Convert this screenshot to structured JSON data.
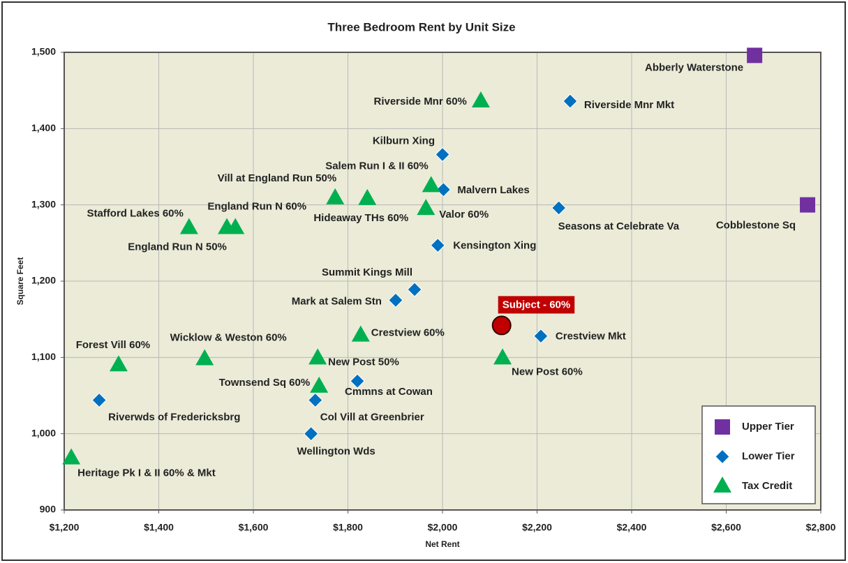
{
  "chart_data": {
    "type": "scatter",
    "title": "Three Bedroom Rent by Unit Size",
    "xlabel": "Net Rent",
    "ylabel": "Square Feet",
    "xlim": [
      1200,
      2800
    ],
    "ylim": [
      900,
      1500
    ],
    "xticks": [
      {
        "value": 1200,
        "label": "$1,200"
      },
      {
        "value": 1400,
        "label": "$1,400"
      },
      {
        "value": 1600,
        "label": "$1,600"
      },
      {
        "value": 1800,
        "label": "$1,800"
      },
      {
        "value": 2000,
        "label": "$2,000"
      },
      {
        "value": 2200,
        "label": "$2,200"
      },
      {
        "value": 2400,
        "label": "$2,400"
      },
      {
        "value": 2600,
        "label": "$2,600"
      },
      {
        "value": 2800,
        "label": "$2,800"
      }
    ],
    "yticks": [
      900,
      {
        "value": 1000,
        "label": "1,000"
      },
      {
        "value": 1100,
        "label": "1,100"
      },
      {
        "value": 1200,
        "label": "1,200"
      },
      {
        "value": 1300,
        "label": "1,300"
      },
      {
        "value": 1400,
        "label": "1,400"
      },
      {
        "value": 1500,
        "label": "1,500"
      }
    ],
    "grid": true,
    "legend": "lower right",
    "series": [
      {
        "name": "Upper Tier",
        "color": "#7030a0",
        "marker": "square",
        "x": [
          2660,
          2772
        ],
        "y": [
          1496,
          1300
        ],
        "labels": [
          "Abberly Waterstone",
          "Cobblestone Sq"
        ]
      },
      {
        "name": "Lower Tier",
        "color": "#0070c0",
        "marker": "diamond",
        "x": [
          2270,
          2000,
          2002,
          2246,
          1990,
          1941,
          1901,
          2208,
          1820,
          1731,
          1722,
          1274
        ],
        "y": [
          1436,
          1366,
          1320,
          1296,
          1247,
          1189,
          1175,
          1128,
          1069,
          1044,
          1000,
          1044
        ],
        "labels": [
          "Riverside Mnr Mkt",
          "Kilburn Xing",
          "Malvern Lakes",
          "Seasons at Celebrate Va",
          "Kensington Xing",
          "Summit Kings Mill",
          "Mark at Salem Stn",
          "Crestview Mkt",
          "Cmmns at Cowan",
          "Col Vill at Greenbrier",
          "Wellington Wds",
          "Riverwds of Fredericksbrg"
        ]
      },
      {
        "name": "Tax Credit",
        "color": "#00b050",
        "marker": "triangle",
        "x": [
          2081,
          1976,
          1965,
          1773,
          1841,
          1562,
          1544,
          1464,
          1827,
          1497,
          1315,
          1736,
          1739,
          2127,
          1215
        ],
        "y": [
          1436,
          1325,
          1295,
          1309,
          1308,
          1270,
          1270,
          1270,
          1129,
          1098,
          1090,
          1099,
          1062,
          1099,
          968
        ],
        "labels": [
          "Riverside Mnr 60%",
          "Salem Run I & II 60%",
          "Valor 60%",
          "Vill at England Run 50%",
          "Hideaway THs 60%",
          "England Run N 60%",
          "England Run N 50%",
          "Stafford Lakes 60%",
          "Crestview 60%",
          "Wicklow & Weston 60%",
          "Forest Vill 60%",
          "New Post 50%",
          "Townsend Sq 60%",
          "New Post 60%",
          "Heritage Pk I & II 60% & Mkt"
        ]
      }
    ],
    "highlight": {
      "label": "Subject - 60%",
      "x": 2125,
      "y": 1142,
      "color": "#c00000"
    }
  }
}
